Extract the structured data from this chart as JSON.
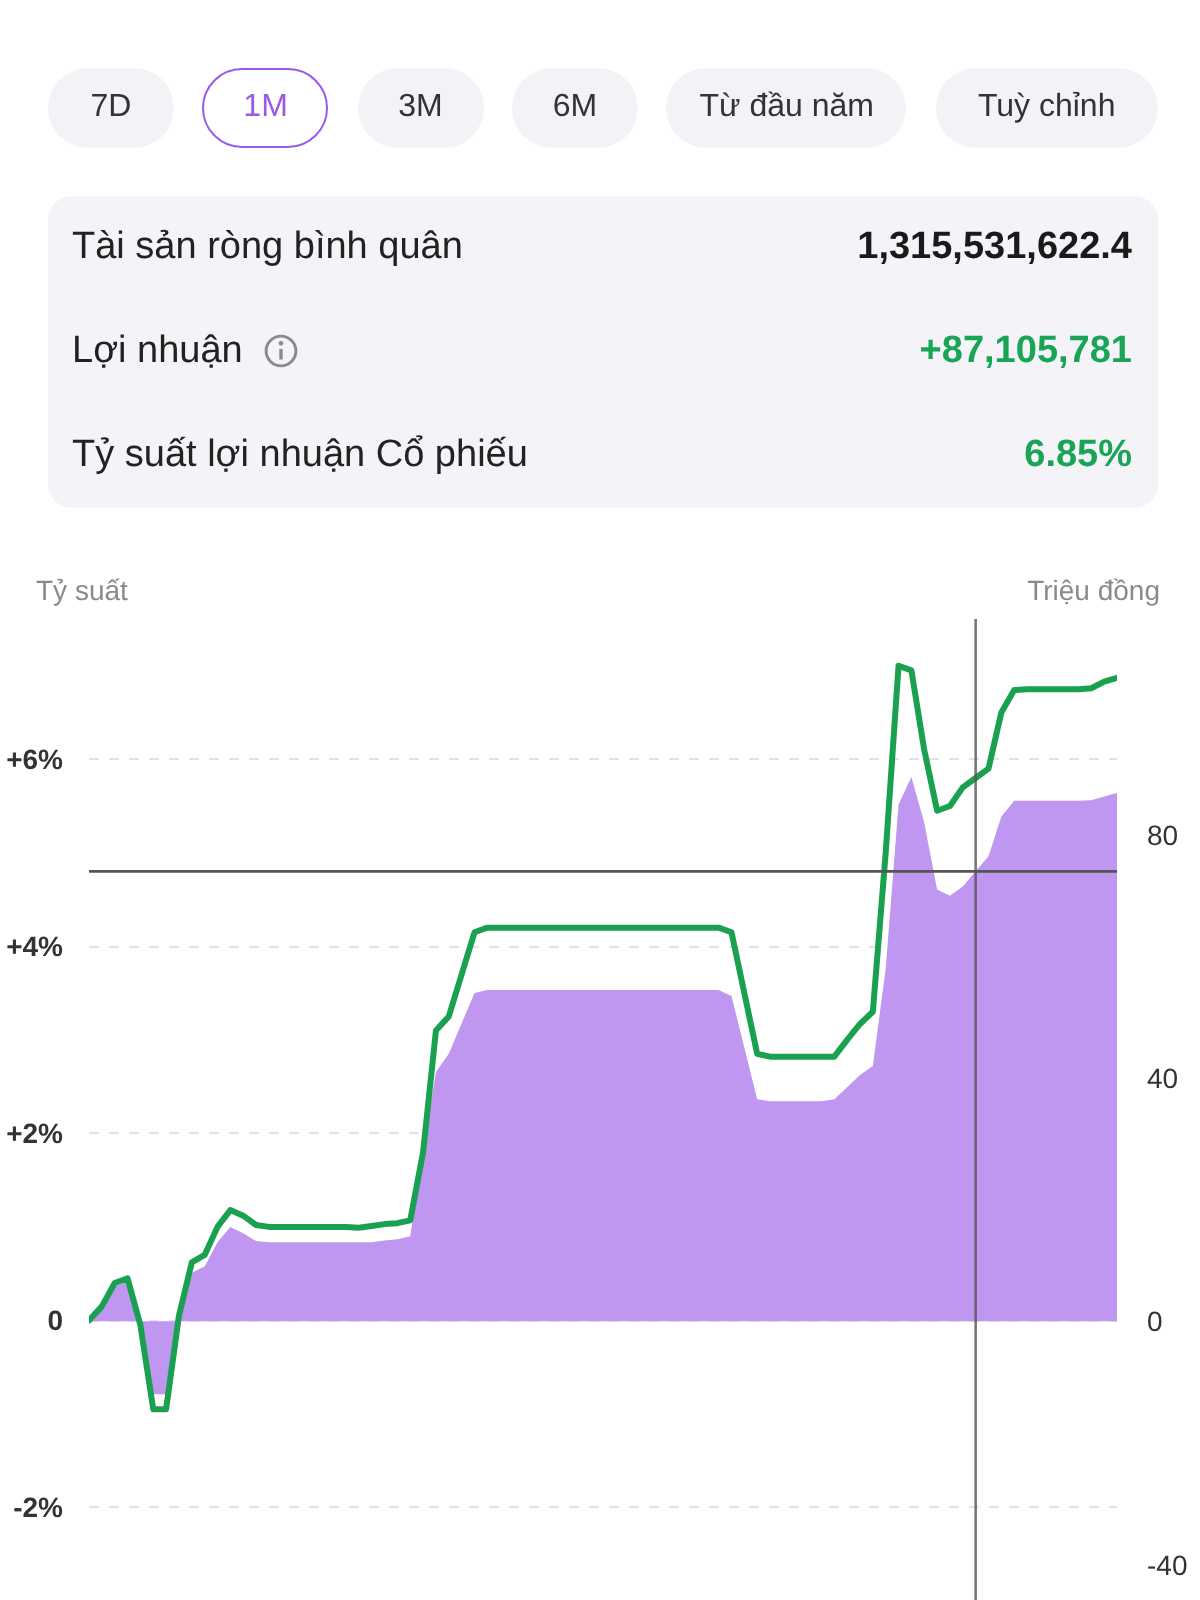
{
  "chart_data": [
    {
      "type": "other",
      "categories": [
        "7D",
        "1M",
        "3M",
        "6M",
        "Từ đầu năm",
        "Tuỳ chỉnh"
      ],
      "colors": [
        "#f3f3f7",
        "#9b59e8",
        "#f3f3f7",
        "#f3f3f7",
        "#f3f3f7",
        "#f3f3f7"
      ]
    },
    {
      "type": "other",
      "categories": [
        "Tài sản ròng bình quân",
        "Lợi nhuận",
        "Tỷ suất lợi nhuận Cổ phiếu"
      ],
      "value_labels": [
        "1,315,531,622.4",
        "+87,105,781",
        "6.85%"
      ]
    },
    {
      "type": "line",
      "ylabel": "Tỷ suất",
      "y2label": "Triệu đồng",
      "categories": [
        null,
        null,
        null,
        null,
        null,
        null,
        null,
        null,
        null,
        null,
        null,
        null,
        null,
        null,
        null,
        null,
        null,
        null,
        null,
        null,
        null,
        null,
        null,
        null,
        null,
        null,
        null,
        null,
        null,
        null,
        null,
        null,
        null,
        null,
        null,
        null,
        null,
        null,
        null,
        null,
        null,
        null,
        null,
        null,
        null,
        null,
        null,
        null,
        null,
        null,
        null,
        null,
        null,
        null,
        null,
        null,
        null,
        null,
        null,
        null,
        null,
        null,
        null,
        null,
        null,
        null,
        null,
        null,
        null,
        null,
        null,
        null,
        null,
        null,
        null,
        null,
        null,
        null,
        null,
        null,
        null
      ],
      "series": [
        {
          "type": "area",
          "axis": "y2",
          "color": "#bf97f0",
          "values": [
            0,
            2.5,
            5.8,
            6.5,
            -1,
            -12,
            -12,
            0.5,
            8,
            9,
            13,
            15.5,
            14.5,
            13.2,
            13,
            13,
            13,
            13,
            13,
            13,
            13,
            13,
            13,
            13.3,
            13.5,
            14,
            28,
            41,
            44,
            49,
            54,
            54.5,
            54.5,
            54.5,
            54.5,
            54.5,
            54.5,
            54.5,
            54.5,
            54.5,
            54.5,
            54.5,
            54.5,
            54.5,
            54.5,
            54.5,
            54.5,
            54.5,
            54.5,
            54.5,
            53.5,
            45,
            36.5,
            36.2,
            36.2,
            36.2,
            36.2,
            36.2,
            36.5,
            38.5,
            40.5,
            42,
            58,
            85,
            89.5,
            82,
            71,
            70,
            71.5,
            74,
            76.5,
            83,
            85.6,
            85.6,
            85.6,
            85.6,
            85.6,
            85.6,
            85.7,
            86.3,
            86.9
          ]
        },
        {
          "type": "line",
          "color": "#19a14f",
          "values": [
            0,
            0.15,
            0.4,
            0.45,
            -0.05,
            -0.95,
            -0.95,
            0.05,
            0.62,
            0.7,
            1.0,
            1.18,
            1.12,
            1.02,
            1.0,
            1.0,
            1.0,
            1.0,
            1.0,
            1.0,
            1.0,
            0.99,
            1.01,
            1.03,
            1.04,
            1.07,
            1.8,
            3.1,
            3.25,
            3.7,
            4.15,
            4.2,
            4.2,
            4.2,
            4.2,
            4.2,
            4.2,
            4.2,
            4.2,
            4.2,
            4.2,
            4.2,
            4.2,
            4.2,
            4.2,
            4.2,
            4.2,
            4.2,
            4.2,
            4.2,
            4.15,
            3.5,
            2.85,
            2.82,
            2.82,
            2.82,
            2.82,
            2.82,
            2.82,
            3.0,
            3.17,
            3.3,
            5.0,
            7.0,
            6.95,
            6.1,
            5.45,
            5.5,
            5.7,
            5.8,
            5.9,
            6.5,
            6.74,
            6.75,
            6.75,
            6.75,
            6.75,
            6.75,
            6.76,
            6.83,
            6.87
          ]
        }
      ],
      "ylim": [
        -3,
        7.5
      ],
      "yticks": [
        {
          "value": 6,
          "label": "+6%"
        },
        {
          "value": 4,
          "label": "+4%"
        },
        {
          "value": 2,
          "label": "+2%"
        },
        0,
        {
          "value": -2,
          "label": "-2%"
        }
      ],
      "y2lim": [
        -46,
        115.5
      ],
      "y2ticks": [
        80,
        40,
        0,
        -40
      ],
      "grid": "y",
      "tick_labels": "y",
      "ref_lines": [
        {
          "axis": "y2",
          "value": 74,
          "color": "#555555"
        }
      ]
    }
  ]
}
